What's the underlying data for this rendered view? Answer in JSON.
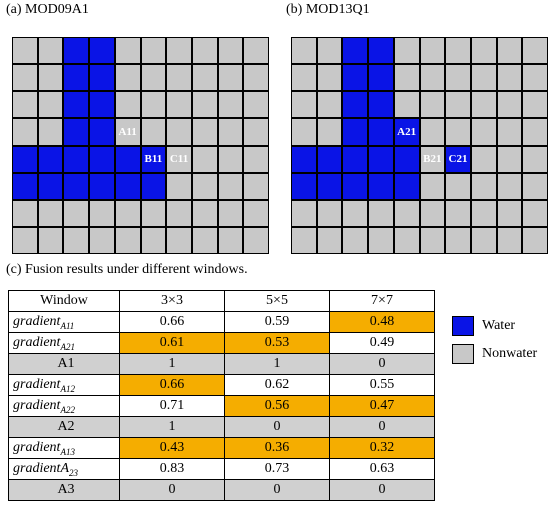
{
  "panel_a": {
    "caption": "(a) MOD09A1",
    "rows": 8,
    "cols": 10,
    "water": [
      [
        0,
        2
      ],
      [
        0,
        3
      ],
      [
        1,
        2
      ],
      [
        1,
        3
      ],
      [
        2,
        2
      ],
      [
        2,
        3
      ],
      [
        3,
        2
      ],
      [
        3,
        3
      ],
      [
        4,
        0
      ],
      [
        4,
        1
      ],
      [
        4,
        2
      ],
      [
        4,
        3
      ],
      [
        4,
        4
      ],
      [
        4,
        5
      ],
      [
        5,
        0
      ],
      [
        5,
        1
      ],
      [
        5,
        2
      ],
      [
        5,
        3
      ],
      [
        5,
        4
      ],
      [
        5,
        5
      ]
    ],
    "labels": [
      {
        "row": 3,
        "col": 4,
        "text": "A11"
      },
      {
        "row": 4,
        "col": 5,
        "text": "B11"
      },
      {
        "row": 4,
        "col": 6,
        "text": "C11"
      }
    ]
  },
  "panel_b": {
    "caption": "(b) MOD13Q1",
    "rows": 8,
    "cols": 10,
    "water": [
      [
        0,
        2
      ],
      [
        0,
        3
      ],
      [
        1,
        2
      ],
      [
        1,
        3
      ],
      [
        2,
        2
      ],
      [
        2,
        3
      ],
      [
        3,
        2
      ],
      [
        3,
        3
      ],
      [
        3,
        4
      ],
      [
        4,
        0
      ],
      [
        4,
        1
      ],
      [
        4,
        2
      ],
      [
        4,
        3
      ],
      [
        4,
        4
      ],
      [
        4,
        6
      ],
      [
        5,
        0
      ],
      [
        5,
        1
      ],
      [
        5,
        2
      ],
      [
        5,
        3
      ],
      [
        5,
        4
      ]
    ],
    "labels": [
      {
        "row": 3,
        "col": 4,
        "text": "A21"
      },
      {
        "row": 4,
        "col": 5,
        "text": "B21"
      },
      {
        "row": 4,
        "col": 6,
        "text": "C21"
      }
    ]
  },
  "panel_c": {
    "caption": "(c) Fusion results under different windows.",
    "header": [
      "Window",
      "3×3",
      "5×5",
      "7×7"
    ],
    "rows": [
      {
        "base": "gradient",
        "sub": "A11",
        "values": [
          "0.66",
          "0.59",
          "0.48"
        ],
        "highlight": [
          false,
          false,
          true
        ],
        "gray": false
      },
      {
        "base": "gradient",
        "sub": "A21",
        "values": [
          "0.61",
          "0.53",
          "0.49"
        ],
        "highlight": [
          true,
          true,
          false
        ],
        "gray": false
      },
      {
        "base": "A1",
        "sub": "",
        "values": [
          "1",
          "1",
          "0"
        ],
        "highlight": [
          false,
          false,
          false
        ],
        "gray": true
      },
      {
        "base": "gradient",
        "sub": "A12",
        "values": [
          "0.66",
          "0.62",
          "0.55"
        ],
        "highlight": [
          true,
          false,
          false
        ],
        "gray": false
      },
      {
        "base": "gradient",
        "sub": "A22",
        "values": [
          "0.71",
          "0.56",
          "0.47"
        ],
        "highlight": [
          false,
          true,
          true
        ],
        "gray": false
      },
      {
        "base": "A2",
        "sub": "",
        "values": [
          "1",
          "0",
          "0"
        ],
        "highlight": [
          false,
          false,
          false
        ],
        "gray": true
      },
      {
        "base": "gradient",
        "sub": "A13",
        "values": [
          "0.43",
          "0.36",
          "0.32"
        ],
        "highlight": [
          true,
          true,
          true
        ],
        "gray": false
      },
      {
        "base": "gradientA",
        "sub": "23",
        "values": [
          "0.83",
          "0.73",
          "0.63"
        ],
        "highlight": [
          false,
          false,
          false
        ],
        "gray": false
      },
      {
        "base": "A3",
        "sub": "",
        "values": [
          "0",
          "0",
          "0"
        ],
        "highlight": [
          false,
          false,
          false
        ],
        "gray": true
      }
    ]
  },
  "legend": [
    {
      "label": "Water",
      "color": "#0a14e6"
    },
    {
      "label": "Nonwater",
      "color": "#c8c8c8"
    }
  ]
}
